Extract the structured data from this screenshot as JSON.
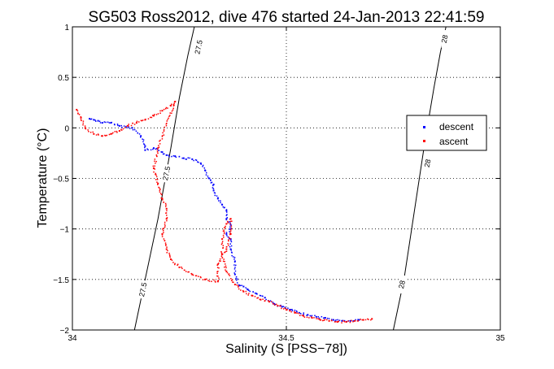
{
  "chart_data": {
    "type": "scatter",
    "title": "SG503 Ross2012, dive 476 started 24-Jan-2013 22:41:59",
    "xlabel": "Salinity (S [PSS−78])",
    "ylabel": "Temperature (°C)",
    "xlim": [
      34,
      35
    ],
    "ylim": [
      -2,
      1
    ],
    "xticks": [
      34,
      34.5,
      35
    ],
    "xtick_labels": [
      "34",
      "34.5",
      "35"
    ],
    "yticks": [
      1,
      0.5,
      0,
      -0.5,
      -1,
      -1.5,
      -2
    ],
    "ytick_labels": [
      "1",
      "0.5",
      "0",
      "−0.5",
      "−1",
      "−1.5",
      "−2"
    ],
    "grid": true,
    "legend_position": "right",
    "series": [
      {
        "name": "descent",
        "color": "#0000ff",
        "x": [
          34.04,
          34.05,
          34.06,
          34.07,
          34.09,
          34.11,
          34.14,
          34.16,
          34.17,
          34.17,
          34.19,
          34.21,
          34.22,
          34.24,
          34.26,
          34.28,
          34.3,
          34.31,
          34.32,
          34.33,
          34.33,
          34.34,
          34.35,
          34.36,
          34.36,
          34.37,
          34.37,
          34.36,
          34.37,
          34.37,
          34.38,
          34.38,
          34.39,
          34.4,
          34.41,
          34.43,
          34.45,
          34.47,
          34.49,
          34.51,
          34.53,
          34.55,
          34.57,
          34.59,
          34.61,
          34.63,
          34.65,
          34.67
        ],
        "y": [
          0.09,
          0.08,
          0.07,
          0.05,
          0.05,
          0.02,
          0.0,
          -0.08,
          -0.18,
          -0.22,
          -0.2,
          -0.24,
          -0.27,
          -0.28,
          -0.3,
          -0.31,
          -0.35,
          -0.42,
          -0.5,
          -0.56,
          -0.62,
          -0.7,
          -0.76,
          -0.82,
          -0.9,
          -0.96,
          -1.0,
          -1.05,
          -1.1,
          -1.2,
          -1.32,
          -1.45,
          -1.56,
          -1.57,
          -1.6,
          -1.64,
          -1.68,
          -1.74,
          -1.77,
          -1.8,
          -1.83,
          -1.85,
          -1.87,
          -1.88,
          -1.9,
          -1.91,
          -1.91,
          -1.9
        ]
      },
      {
        "name": "ascent",
        "color": "#ff0000",
        "x": [
          34.01,
          34.02,
          34.03,
          34.05,
          34.07,
          34.09,
          34.11,
          34.13,
          34.15,
          34.17,
          34.19,
          34.21,
          34.23,
          34.24,
          34.2,
          34.19,
          34.2,
          34.21,
          34.22,
          34.22,
          34.21,
          34.22,
          34.23,
          34.25,
          34.28,
          34.31,
          34.34,
          34.34,
          34.36,
          34.37,
          34.37,
          34.36,
          34.35,
          34.35,
          34.36,
          34.38,
          34.4,
          34.42,
          34.44,
          34.46,
          34.48,
          34.5,
          34.52,
          34.54,
          34.56,
          34.58,
          34.6,
          34.62,
          34.64,
          34.66,
          34.68,
          34.7
        ],
        "y": [
          0.18,
          0.1,
          0.0,
          -0.06,
          -0.08,
          -0.06,
          -0.03,
          0.02,
          0.05,
          0.08,
          0.12,
          0.17,
          0.22,
          0.26,
          -0.2,
          -0.4,
          -0.55,
          -0.7,
          -0.8,
          -0.9,
          -1.05,
          -1.2,
          -1.3,
          -1.38,
          -1.45,
          -1.5,
          -1.52,
          -1.35,
          -1.2,
          -1.05,
          -0.9,
          -0.95,
          -1.1,
          -1.25,
          -1.42,
          -1.55,
          -1.62,
          -1.66,
          -1.7,
          -1.72,
          -1.76,
          -1.8,
          -1.83,
          -1.86,
          -1.88,
          -1.9,
          -1.91,
          -1.92,
          -1.92,
          -1.91,
          -1.9,
          -1.89
        ]
      }
    ],
    "contours": [
      {
        "label": "27.5",
        "x": [
          34.145,
          34.17,
          34.2,
          34.23,
          34.25,
          34.27,
          34.285
        ],
        "y": [
          -2.0,
          -1.5,
          -0.9,
          -0.2,
          0.3,
          0.72,
          1.0
        ]
      },
      {
        "label": "28",
        "x": [
          34.75,
          34.775,
          34.8,
          34.825,
          34.845,
          34.86,
          34.873
        ],
        "y": [
          -2.0,
          -1.5,
          -0.8,
          -0.1,
          0.4,
          0.75,
          1.0
        ]
      }
    ],
    "contour_labels": [
      {
        "text": "27.5",
        "x": 34.295,
        "y": 0.8
      },
      {
        "text": "27.5",
        "x": 34.165,
        "y": -1.6
      },
      {
        "text": "27.5",
        "x": 34.22,
        "y": -0.45
      },
      {
        "text": "28",
        "x": 34.87,
        "y": 0.88
      },
      {
        "text": "28",
        "x": 34.83,
        "y": -0.35
      },
      {
        "text": "28",
        "x": 34.77,
        "y": -1.55
      }
    ]
  }
}
